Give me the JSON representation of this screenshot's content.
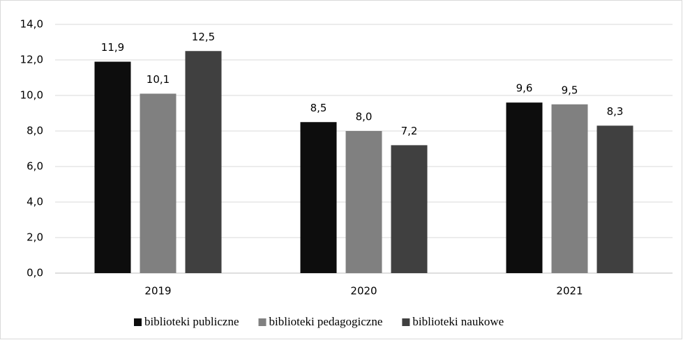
{
  "chart_data": {
    "type": "bar",
    "categories": [
      "2019",
      "2020",
      "2021"
    ],
    "series": [
      {
        "name": "biblioteki publiczne",
        "color": "#0d0d0d",
        "values": [
          11.9,
          8.5,
          9.6
        ],
        "value_labels": [
          "11,9",
          "8,5",
          "9,6"
        ]
      },
      {
        "name": "biblioteki pedagogiczne",
        "color": "#808080",
        "values": [
          10.1,
          8.0,
          9.5
        ],
        "value_labels": [
          "10,1",
          "8,0",
          "9,5"
        ]
      },
      {
        "name": "biblioteki naukowe",
        "color": "#404040",
        "values": [
          12.5,
          7.2,
          8.3
        ],
        "value_labels": [
          "12,5",
          "7,2",
          "8,3"
        ]
      }
    ],
    "ylim": [
      0,
      14
    ],
    "yticks": [
      {
        "value": 0,
        "label": "0,0"
      },
      {
        "value": 2,
        "label": "2,0"
      },
      {
        "value": 4,
        "label": "4,0"
      },
      {
        "value": 6,
        "label": "6,0"
      },
      {
        "value": 8,
        "label": "8,0"
      },
      {
        "value": 10,
        "label": "10,0"
      },
      {
        "value": 12,
        "label": "12,0"
      },
      {
        "value": 14,
        "label": "14,0"
      }
    ],
    "grid": true,
    "legend": "bottom"
  }
}
